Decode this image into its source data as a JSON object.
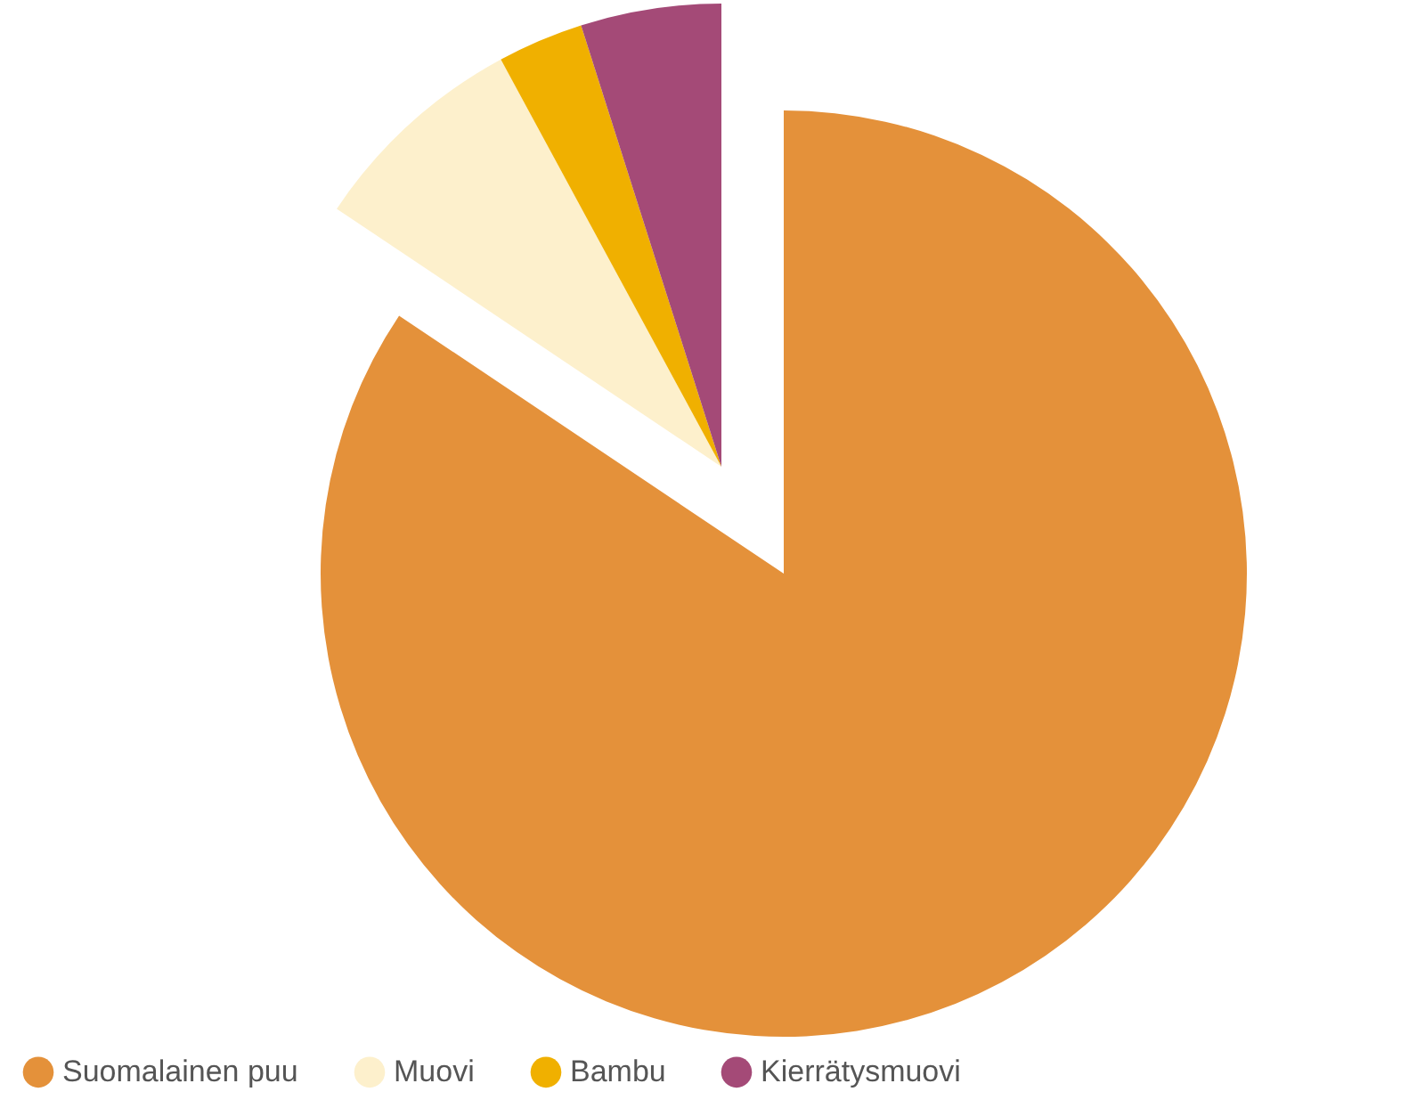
{
  "chart_data": {
    "type": "pie",
    "categories": [
      "Suomalainen puu",
      "Muovi",
      "Bambu",
      "Kierrätysmuovi"
    ],
    "values": [
      84.4,
      7.7,
      3.0,
      4.9
    ],
    "colors": [
      "#e4913a",
      "#fdf0cc",
      "#f0b000",
      "#a44a77"
    ],
    "legend": "bottom"
  }
}
